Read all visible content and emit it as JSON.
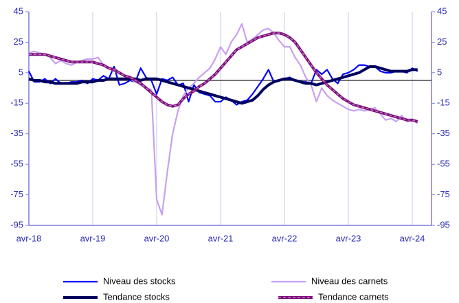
{
  "chart_data": {
    "type": "line",
    "categories": [
      "avr-18",
      null,
      null,
      null,
      null,
      null,
      null,
      null,
      null,
      null,
      null,
      null,
      "avr-19",
      null,
      null,
      null,
      null,
      null,
      null,
      null,
      null,
      null,
      null,
      null,
      "avr-20",
      null,
      null,
      null,
      null,
      null,
      null,
      null,
      null,
      null,
      null,
      null,
      "avr-21",
      null,
      null,
      null,
      null,
      null,
      null,
      null,
      null,
      null,
      null,
      null,
      "avr-22",
      null,
      null,
      null,
      null,
      null,
      null,
      null,
      null,
      null,
      null,
      null,
      "avr-23",
      null,
      null,
      null,
      null,
      null,
      null,
      null,
      null,
      null,
      null,
      null,
      "avr-24",
      null
    ],
    "series": [
      {
        "name": "Niveau des stocks",
        "color": "#0000ff",
        "width": 2.2,
        "values": [
          6,
          -1,
          -1,
          1,
          -2,
          1,
          -2,
          -2,
          -1,
          -1,
          0,
          -2,
          1,
          0,
          3,
          1,
          9,
          -3,
          -2,
          0,
          -1,
          8,
          2,
          0,
          -9,
          1,
          0,
          2,
          -3,
          -2,
          -14,
          -3,
          -8,
          -9,
          -10,
          -14,
          -14,
          -11,
          -13,
          -16,
          -14,
          -13,
          -9,
          -4,
          1,
          7,
          -1,
          0,
          1,
          2,
          0,
          -1,
          -1,
          -2,
          7,
          4,
          7,
          1,
          -2,
          4,
          5,
          7,
          10,
          10,
          9,
          9,
          6,
          5,
          5,
          6,
          6,
          5,
          8,
          6
        ]
      },
      {
        "name": "Niveau des carnets",
        "color": "#c9a0f0",
        "width": 2.2,
        "values": [
          18,
          19,
          18,
          17,
          15,
          11,
          13,
          11,
          10,
          12,
          13,
          14,
          14,
          15,
          10,
          8,
          6,
          5,
          3,
          1,
          -1,
          -3,
          -5,
          -6,
          -78,
          -88,
          -60,
          -35,
          -20,
          -10,
          -5,
          -2,
          2,
          5,
          8,
          14,
          22,
          17,
          25,
          30,
          37,
          25,
          27,
          30,
          33,
          34,
          31,
          26,
          22,
          22,
          15,
          10,
          2,
          -3,
          -14,
          -5,
          -10,
          -13,
          -15,
          -17,
          -19,
          -20,
          -19,
          -20,
          -19,
          -18,
          -22,
          -26,
          -25,
          -27,
          -23,
          -27,
          -26,
          -28
        ]
      },
      {
        "name": "Tendance stocks",
        "color": "#00005e",
        "width": 4,
        "values": [
          1,
          0,
          0,
          -1,
          -1,
          -2,
          -2,
          -2,
          -2,
          -2,
          -1,
          -1,
          -1,
          0,
          0,
          1,
          1,
          1,
          1,
          1,
          1,
          0,
          1,
          1,
          1,
          0,
          -1,
          -2,
          -3,
          -4,
          -5,
          -6,
          -7,
          -8,
          -9,
          -10,
          -11,
          -12,
          -13,
          -14,
          -15,
          -14,
          -13,
          -10,
          -6,
          -3,
          -1,
          0,
          1,
          1,
          0,
          -1,
          -2,
          -2,
          -3,
          -2,
          -1,
          0,
          1,
          2,
          3,
          4,
          5,
          7,
          9,
          9,
          8,
          7,
          6,
          6,
          6,
          6,
          7,
          7
        ]
      },
      {
        "name": "Tendance carnets",
        "color": "#7a0f7a",
        "dash_color": "#c070c0",
        "width": 4,
        "values": [
          17,
          17,
          17,
          17,
          16,
          15,
          14,
          13,
          12,
          12,
          12,
          12,
          12,
          11,
          10,
          8,
          7,
          5,
          3,
          2,
          0,
          -2,
          -5,
          -8,
          -11,
          -14,
          -16,
          -17,
          -16,
          -12,
          -9,
          -7,
          -4,
          -2,
          1,
          4,
          8,
          12,
          16,
          20,
          22,
          24,
          26,
          28,
          29,
          30,
          31,
          31,
          30,
          28,
          25,
          20,
          15,
          10,
          5,
          1,
          -3,
          -6,
          -9,
          -12,
          -14,
          -16,
          -17,
          -18,
          -19,
          -20,
          -21,
          -22,
          -23,
          -24,
          -25,
          -26,
          -26,
          -27
        ]
      }
    ],
    "ylim": [
      -95,
      45
    ],
    "yticks": [
      45,
      25,
      5,
      -15,
      -35,
      -55,
      -75,
      -95
    ],
    "y2lim": [
      -95,
      45
    ],
    "y2ticks": [
      45,
      25,
      5,
      -15,
      -35,
      -55,
      -75,
      -95
    ],
    "grid": true,
    "legend": "bottom"
  }
}
